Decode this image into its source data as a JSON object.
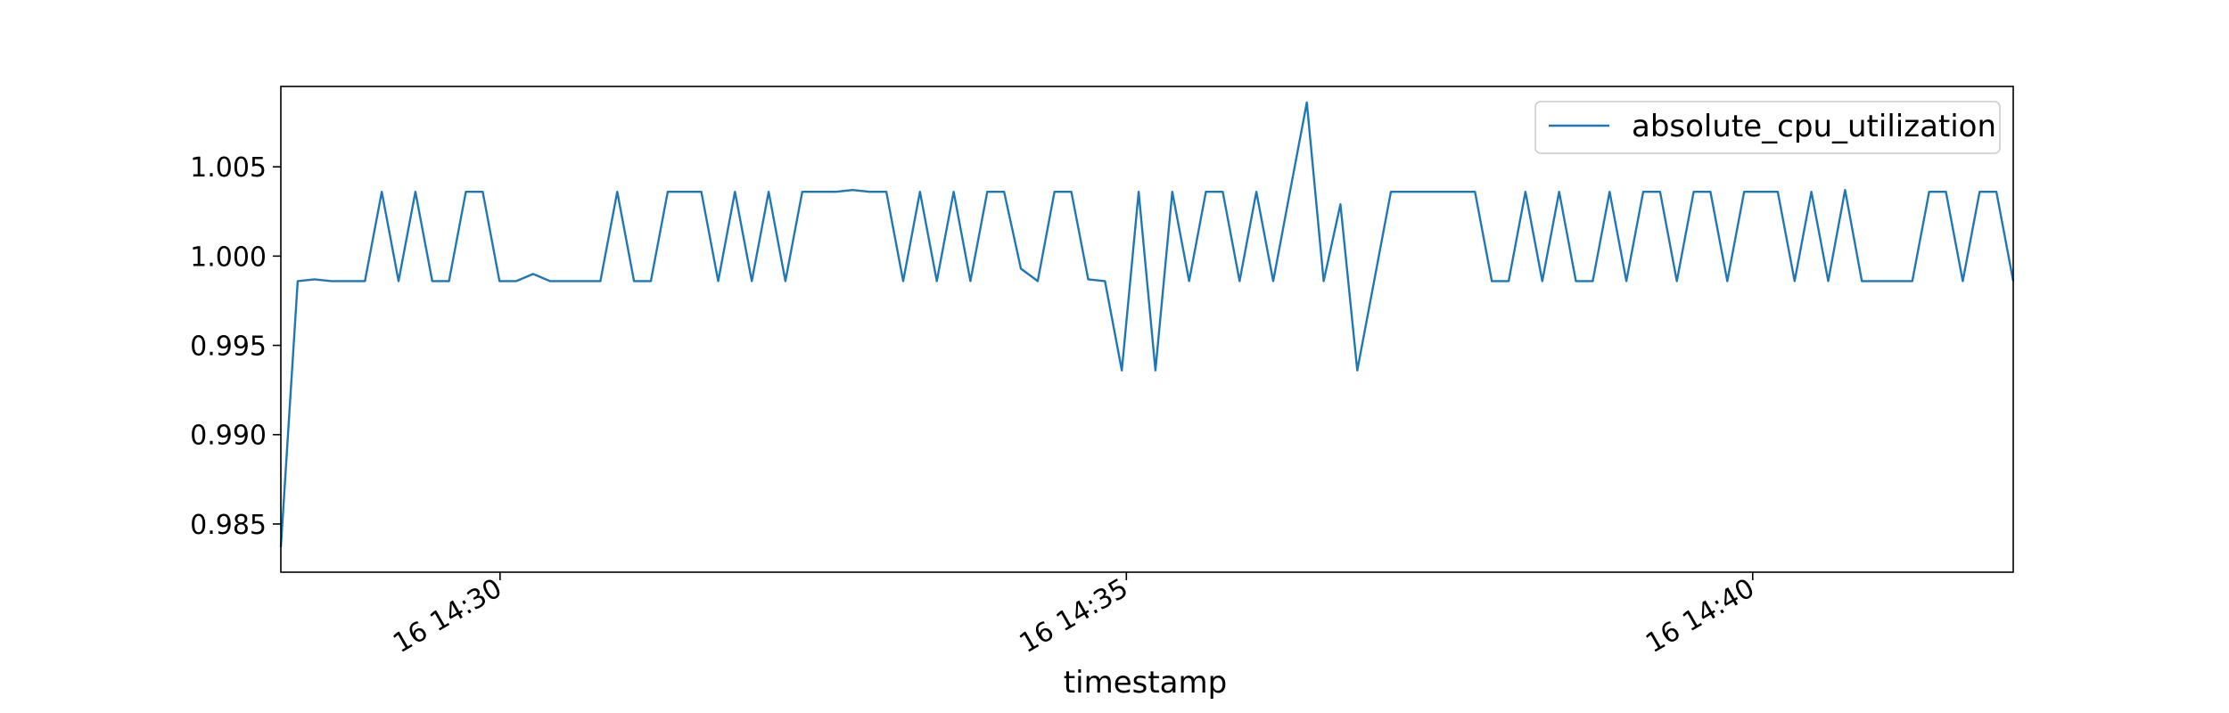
{
  "chart_data": {
    "type": "line",
    "title": "",
    "xlabel": "timestamp",
    "ylabel": "",
    "x_unit": "minutes since 16 14:26:30",
    "x_range": [
      0,
      13.83
    ],
    "ylim": [
      0.9823,
      1.0095
    ],
    "y_ticks": [
      0.985,
      0.99,
      0.995,
      1.0,
      1.005
    ],
    "y_tick_labels": [
      "0.985",
      "0.990",
      "0.995",
      "1.000",
      "1.005"
    ],
    "x_ticks": [
      1.75,
      6.75,
      11.75
    ],
    "x_tick_labels": [
      "16 14:30",
      "16 14:35",
      "16 14:40"
    ],
    "grid": false,
    "legend_position": "top-right",
    "series": [
      {
        "name": "absolute_cpu_utilization",
        "color": "#1f77b4",
        "values": [
          0.9837,
          0.9986,
          0.9987,
          0.9986,
          0.9986,
          0.9986,
          1.0036,
          0.9986,
          1.0036,
          0.9986,
          0.9986,
          1.0036,
          1.0036,
          0.9986,
          0.9986,
          0.999,
          0.9986,
          0.9986,
          0.9986,
          0.9986,
          1.0036,
          0.9986,
          0.9986,
          1.0036,
          1.0036,
          1.0036,
          0.9986,
          1.0036,
          0.9986,
          1.0036,
          0.9986,
          1.0036,
          1.0036,
          1.0036,
          1.0037,
          1.0036,
          1.0036,
          0.9986,
          1.0036,
          0.9986,
          1.0036,
          0.9986,
          1.0036,
          1.0036,
          0.9993,
          0.9986,
          1.0036,
          1.0036,
          0.9987,
          0.9986,
          0.9936,
          1.0036,
          0.9936,
          1.0036,
          0.9986,
          1.0036,
          1.0036,
          0.9986,
          1.0036,
          0.9986,
          1.0036,
          1.0086,
          0.9986,
          1.0029,
          0.9936,
          0.9986,
          1.0036,
          1.0036,
          1.0036,
          1.0036,
          1.0036,
          1.0036,
          0.9986,
          0.9986,
          1.0036,
          0.9986,
          1.0036,
          0.9986,
          0.9986,
          1.0036,
          0.9986,
          1.0036,
          1.0036,
          0.9986,
          1.0036,
          1.0036,
          0.9986,
          1.0036,
          1.0036,
          1.0036,
          0.9986,
          1.0036,
          0.9986,
          1.0037,
          0.9986,
          0.9986,
          0.9986,
          0.9986,
          1.0036,
          1.0036,
          0.9986,
          1.0036,
          1.0036,
          0.9986
        ]
      }
    ]
  }
}
